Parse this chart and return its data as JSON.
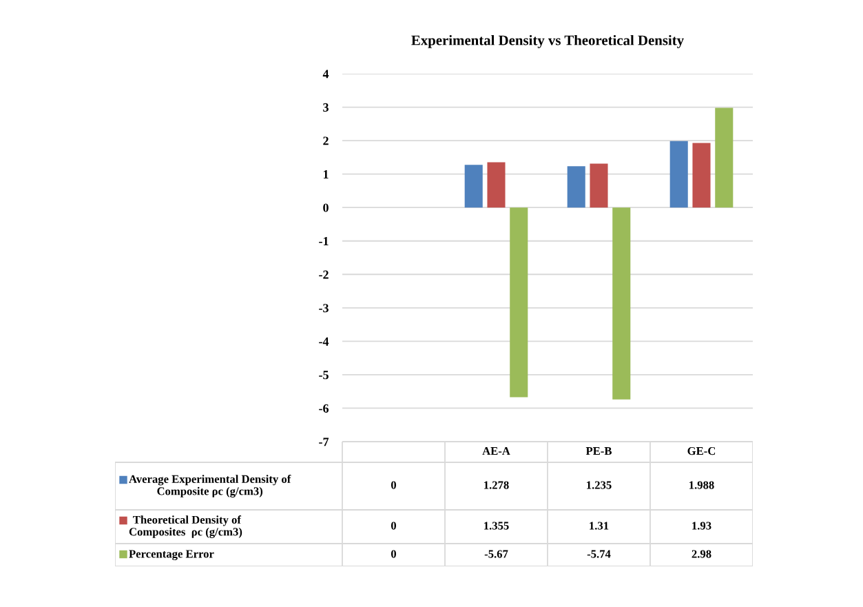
{
  "chart_data": {
    "type": "bar",
    "title": "Experimental Density vs Theoretical Density",
    "categories": [
      null,
      "AE-A",
      "PE-B",
      "GE-C"
    ],
    "series": [
      {
        "name": "Average Experimental Density of\nComposite ρc (g/cm3)",
        "color": "#4f81bd",
        "values": [
          0,
          1.278,
          1.235,
          1.988
        ]
      },
      {
        "name": " Theoretical Density of\nComposites  ρc (g/cm3)",
        "color": "#c0504d",
        "values": [
          0,
          1.355,
          1.31,
          1.93
        ]
      },
      {
        "name": "Percentage Error",
        "color": "#9bbb59",
        "values": [
          0,
          -5.67,
          -5.74,
          2.98
        ]
      }
    ],
    "ylim": [
      -7,
      4
    ],
    "yticks": [
      -7,
      -6,
      -5,
      -4,
      -3,
      -2,
      -1,
      0,
      1,
      2,
      3,
      4
    ],
    "grid": "y",
    "legend": "bottom",
    "data_labels": true
  }
}
